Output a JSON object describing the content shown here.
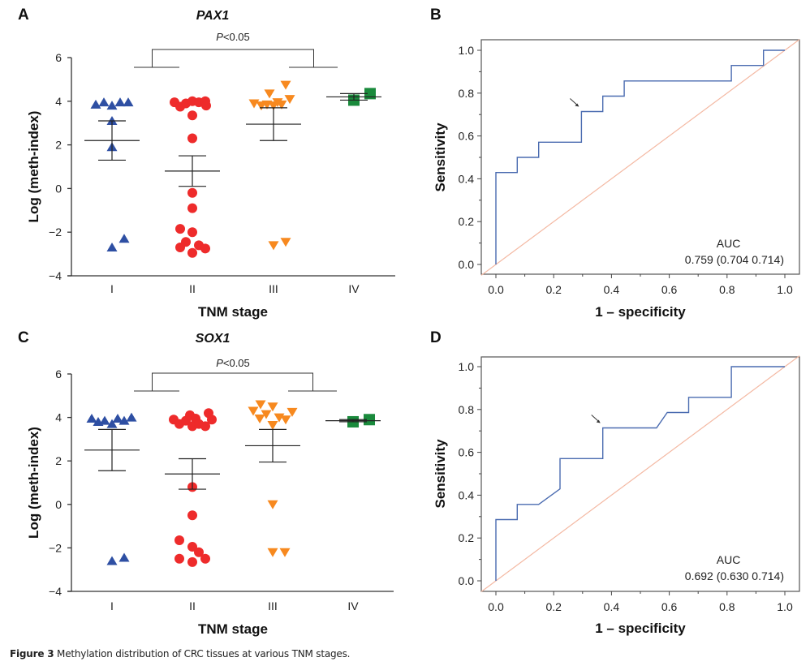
{
  "caption": {
    "label": "Figure 3",
    "text": " Methylation distribution of CRC tissues at various TNM stages."
  },
  "colors": {
    "stage_I": "#2e4fa3",
    "stage_II": "#ee2b2b",
    "stage_III": "#f7891f",
    "stage_IV": "#1a8a3c",
    "roc_line": "#4a6bb0",
    "reference_line": "#f4b9a3",
    "axis": "#333333"
  },
  "chart_data": [
    {
      "panel": "A",
      "type": "scatter",
      "title": "PAX1",
      "xlabel": "TNM stage",
      "ylabel": "Log (meth-index)",
      "ylim": [
        -4,
        6
      ],
      "yticks": [
        "6",
        "4",
        "2",
        "0",
        "−2",
        "−4"
      ],
      "ytick_values": [
        6,
        4,
        2,
        0,
        -2,
        -4
      ],
      "categories": [
        "I",
        "II",
        "III",
        "IV"
      ],
      "annotation": {
        "p_label": "P",
        "p_text": "<0.05",
        "compare": "I+II vs III+IV"
      },
      "series": [
        {
          "name": "I",
          "marker": "triangle-up",
          "points": [
            [
              -0.2,
              3.85
            ],
            [
              -0.1,
              3.95
            ],
            [
              0.0,
              3.8
            ],
            [
              0.1,
              3.95
            ],
            [
              0.2,
              3.95
            ],
            [
              0.0,
              3.1
            ],
            [
              0.0,
              1.9
            ],
            [
              0.0,
              -2.7
            ],
            [
              0.15,
              -2.3
            ]
          ],
          "mean": 2.2,
          "sem": [
            1.3,
            3.1
          ]
        },
        {
          "name": "II",
          "marker": "circle",
          "points": [
            [
              -0.22,
              3.95
            ],
            [
              -0.15,
              3.75
            ],
            [
              -0.08,
              3.9
            ],
            [
              0.0,
              4.0
            ],
            [
              0.08,
              3.95
            ],
            [
              0.16,
              4.0
            ],
            [
              0.17,
              3.8
            ],
            [
              0.0,
              3.35
            ],
            [
              0.0,
              2.3
            ],
            [
              0.0,
              -0.2
            ],
            [
              0.0,
              -0.9
            ],
            [
              -0.15,
              -1.85
            ],
            [
              0.0,
              -2.0
            ],
            [
              -0.08,
              -2.45
            ],
            [
              -0.15,
              -2.7
            ],
            [
              0.08,
              -2.6
            ],
            [
              0.16,
              -2.75
            ],
            [
              0.0,
              -2.95
            ]
          ],
          "mean": 0.8,
          "sem": [
            0.1,
            1.5
          ]
        },
        {
          "name": "III",
          "marker": "triangle-down",
          "points": [
            [
              -0.24,
              3.9
            ],
            [
              -0.15,
              3.8
            ],
            [
              -0.08,
              3.85
            ],
            [
              0.0,
              3.8
            ],
            [
              -0.05,
              4.35
            ],
            [
              0.1,
              3.85
            ],
            [
              0.15,
              4.75
            ],
            [
              0.2,
              4.1
            ],
            [
              0.05,
              3.95
            ],
            [
              0.0,
              -2.6
            ],
            [
              0.15,
              -2.45
            ]
          ],
          "mean": 2.95,
          "sem": [
            2.2,
            3.7
          ]
        },
        {
          "name": "IV",
          "marker": "square",
          "points": [
            [
              0.0,
              4.05
            ],
            [
              0.2,
              4.35
            ]
          ],
          "mean": 4.2,
          "sem": [
            4.05,
            4.35
          ]
        }
      ]
    },
    {
      "panel": "B",
      "type": "line",
      "xlabel": "1 – specificity",
      "ylabel": "Sensitivity",
      "xlim": [
        0,
        1
      ],
      "ylim": [
        0,
        1
      ],
      "xticks": [
        "0.0",
        "0.2",
        "0.4",
        "0.6",
        "0.8",
        "1.0"
      ],
      "yticks": [
        "1.0",
        "0.8",
        "0.6",
        "0.4",
        "0.2",
        "0.0"
      ],
      "tick_values": [
        0,
        0.2,
        0.4,
        0.6,
        0.8,
        1.0
      ],
      "auc_label": "AUC",
      "auc_text": "0.759 (0.704 0.714)",
      "arrow_at": [
        0.296,
        0.714
      ],
      "roc": [
        [
          0,
          0
        ],
        [
          0,
          0.429
        ],
        [
          0.074,
          0.429
        ],
        [
          0.074,
          0.5
        ],
        [
          0.148,
          0.5
        ],
        [
          0.148,
          0.571
        ],
        [
          0.296,
          0.571
        ],
        [
          0.296,
          0.714
        ],
        [
          0.37,
          0.714
        ],
        [
          0.37,
          0.786
        ],
        [
          0.444,
          0.786
        ],
        [
          0.444,
          0.857
        ],
        [
          0.815,
          0.857
        ],
        [
          0.815,
          0.929
        ],
        [
          0.926,
          0.929
        ],
        [
          0.926,
          1.0
        ],
        [
          1.0,
          1.0
        ]
      ]
    },
    {
      "panel": "C",
      "type": "scatter",
      "title": "SOX1",
      "xlabel": "TNM stage",
      "ylabel": "Log (meth-index)",
      "ylim": [
        -4,
        6
      ],
      "yticks": [
        "6",
        "4",
        "2",
        "0",
        "−2",
        "−4"
      ],
      "ytick_values": [
        6,
        4,
        2,
        0,
        -2,
        -4
      ],
      "categories": [
        "I",
        "II",
        "III",
        "IV"
      ],
      "annotation": {
        "p_label": "P",
        "p_text": "<0.05",
        "compare": "I+II vs III+IV"
      },
      "series": [
        {
          "name": "I",
          "marker": "triangle-up",
          "points": [
            [
              -0.25,
              3.95
            ],
            [
              -0.17,
              3.8
            ],
            [
              -0.09,
              3.85
            ],
            [
              0.0,
              3.7
            ],
            [
              0.07,
              3.95
            ],
            [
              0.15,
              3.85
            ],
            [
              0.24,
              4.0
            ],
            [
              0.0,
              -2.6
            ],
            [
              0.15,
              -2.45
            ]
          ],
          "mean": 2.5,
          "sem": [
            1.55,
            3.45
          ]
        },
        {
          "name": "II",
          "marker": "circle",
          "points": [
            [
              -0.23,
              3.9
            ],
            [
              -0.16,
              3.7
            ],
            [
              -0.08,
              3.85
            ],
            [
              -0.03,
              4.1
            ],
            [
              0.04,
              3.95
            ],
            [
              0.0,
              3.6
            ],
            [
              0.08,
              3.7
            ],
            [
              0.16,
              3.6
            ],
            [
              0.2,
              4.2
            ],
            [
              0.24,
              3.9
            ],
            [
              0.0,
              0.8
            ],
            [
              0.0,
              -0.5
            ],
            [
              -0.16,
              -1.65
            ],
            [
              0.0,
              -1.95
            ],
            [
              0.08,
              -2.2
            ],
            [
              -0.16,
              -2.5
            ],
            [
              0.16,
              -2.5
            ],
            [
              0.0,
              -2.65
            ]
          ],
          "mean": 1.4,
          "sem": [
            0.7,
            2.1
          ]
        },
        {
          "name": "III",
          "marker": "triangle-down",
          "points": [
            [
              -0.24,
              4.3
            ],
            [
              -0.15,
              4.6
            ],
            [
              -0.16,
              3.95
            ],
            [
              -0.08,
              4.15
            ],
            [
              0.0,
              4.5
            ],
            [
              0.08,
              4.0
            ],
            [
              0.16,
              3.9
            ],
            [
              0.24,
              4.25
            ],
            [
              0.0,
              3.65
            ],
            [
              0.0,
              0.0
            ],
            [
              0.0,
              -2.2
            ],
            [
              0.15,
              -2.2
            ]
          ],
          "mean": 2.7,
          "sem": [
            1.95,
            3.45
          ]
        },
        {
          "name": "IV",
          "marker": "square",
          "points": [
            [
              0.0,
              3.8
            ],
            [
              0.2,
              3.9
            ]
          ],
          "mean": 3.85,
          "sem": [
            3.8,
            3.9
          ]
        }
      ]
    },
    {
      "panel": "D",
      "type": "line",
      "xlabel": "1 – specificity",
      "ylabel": "Sensitivity",
      "xlim": [
        0,
        1
      ],
      "ylim": [
        0,
        1
      ],
      "xticks": [
        "0.0",
        "0.2",
        "0.4",
        "0.6",
        "0.8",
        "1.0"
      ],
      "yticks": [
        "1.0",
        "0.8",
        "0.6",
        "0.4",
        "0.2",
        "0.0"
      ],
      "tick_values": [
        0,
        0.2,
        0.4,
        0.6,
        0.8,
        1.0
      ],
      "auc_label": "AUC",
      "auc_text": "0.692 (0.630 0.714)",
      "arrow_at": [
        0.37,
        0.714
      ],
      "roc": [
        [
          0,
          0
        ],
        [
          0,
          0.286
        ],
        [
          0.074,
          0.286
        ],
        [
          0.074,
          0.357
        ],
        [
          0.148,
          0.357
        ],
        [
          0.222,
          0.429
        ],
        [
          0.222,
          0.571
        ],
        [
          0.37,
          0.571
        ],
        [
          0.37,
          0.714
        ],
        [
          0.556,
          0.714
        ],
        [
          0.593,
          0.786
        ],
        [
          0.667,
          0.786
        ],
        [
          0.667,
          0.857
        ],
        [
          0.815,
          0.857
        ],
        [
          0.815,
          1.0
        ],
        [
          1.0,
          1.0
        ]
      ]
    }
  ],
  "panel_letters": [
    "A",
    "B",
    "C",
    "D"
  ]
}
